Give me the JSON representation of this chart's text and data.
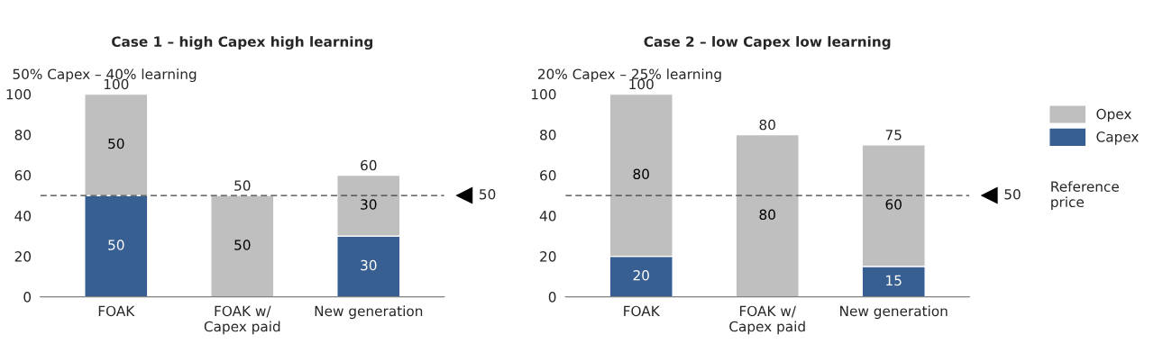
{
  "chart_data": [
    {
      "type": "bar",
      "stacked": true,
      "title": "Case 1 – high Capex high learning",
      "subtitle": "50% Capex – 40% learning",
      "categories": [
        "FOAK",
        "FOAK w/\nCapex paid",
        "New generation"
      ],
      "series": [
        {
          "color": "#375f92",
          "values": [
            50,
            0,
            30
          ],
          "value_labels": [
            "50",
            null,
            "30"
          ]
        },
        {
          "color": "#bfbfbf",
          "values": [
            50,
            50,
            30
          ],
          "value_labels": [
            "50",
            "50",
            "30"
          ]
        }
      ],
      "totals": [
        "100",
        "50",
        "60"
      ],
      "ylim": [
        0,
        100
      ],
      "yticks": [
        0,
        20,
        40,
        60,
        80,
        100
      ],
      "grid": false,
      "legend": false,
      "ref_lines": [
        {
          "axis": "y",
          "value": 50,
          "label": "50",
          "line_style": "dashed",
          "color": "#404040"
        }
      ]
    },
    {
      "type": "bar",
      "stacked": true,
      "title": "Case 2 – low Capex low learning",
      "subtitle": "20% Capex – 25% learning",
      "categories": [
        "FOAK",
        "FOAK w/\nCapex paid",
        "New generation"
      ],
      "series": [
        {
          "name": "Capex",
          "color": "#375f92",
          "values": [
            20,
            0,
            15
          ],
          "value_labels": [
            "20",
            null,
            "15"
          ]
        },
        {
          "name": "Opex",
          "color": "#bfbfbf",
          "values": [
            80,
            80,
            60
          ],
          "value_labels": [
            "80",
            "80",
            "60"
          ]
        }
      ],
      "totals": [
        "100",
        "80",
        "75"
      ],
      "ylim": [
        0,
        100
      ],
      "yticks": [
        0,
        20,
        40,
        60,
        80,
        100
      ],
      "grid": false,
      "legend": "top right",
      "ref_lines": [
        {
          "axis": "y",
          "value": 50,
          "label": "50",
          "line_style": "dashed",
          "color": "#404040"
        }
      ],
      "annotations": [
        "Reference\nprice"
      ]
    }
  ]
}
